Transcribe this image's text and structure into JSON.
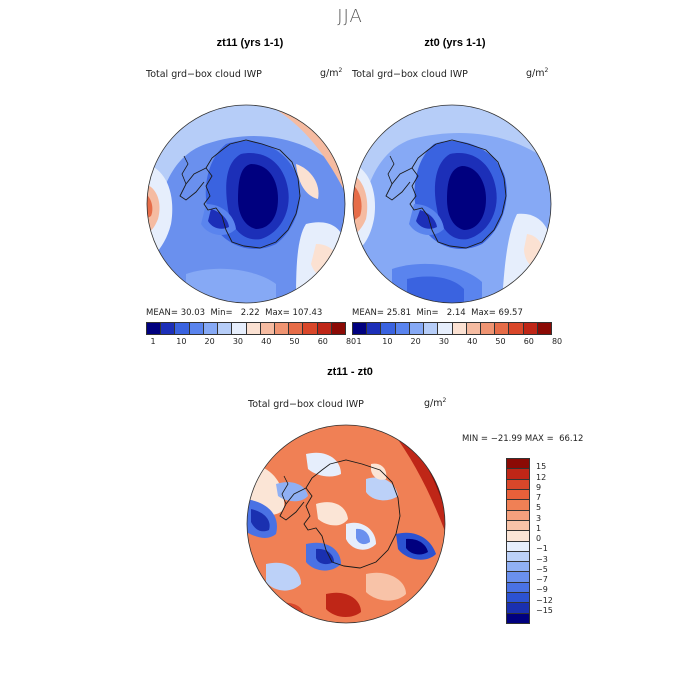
{
  "title": "JJA",
  "panels": [
    {
      "id": "zt11",
      "title": "zt11 (yrs 1-1)",
      "variable": "Total grd−box cloud IWP",
      "units_base": "g/m",
      "units_exp": "2",
      "stats": {
        "mean_label": "MEAN=",
        "mean": "30.03",
        "min_label": "Min=",
        "min": "2.22",
        "max_label": "Max=",
        "max": "107.43"
      }
    },
    {
      "id": "zt0",
      "title": "zt0 (yrs 1-1)",
      "variable": "Total grd−box cloud IWP",
      "units_base": "g/m",
      "units_exp": "2",
      "stats": {
        "mean_label": "MEAN=",
        "mean": "25.81",
        "min_label": "Min=",
        "min": "2.14",
        "max_label": "Max=",
        "max": "69.57"
      }
    }
  ],
  "abs_colorbar": {
    "colors": [
      "#00007f",
      "#1c2fb8",
      "#3a63e0",
      "#5a84ee",
      "#86a9f5",
      "#b6cdf8",
      "#e6eefc",
      "#fbe1d2",
      "#f5bba1",
      "#ef9472",
      "#e66c48",
      "#d9472a",
      "#bf2617",
      "#8b0a05"
    ],
    "labels": [
      "1",
      "10",
      "20",
      "30",
      "40",
      "50",
      "60",
      "80"
    ]
  },
  "diff": {
    "title": "zt11 - zt0",
    "variable": "Total grd−box cloud IWP",
    "units_base": "g/m",
    "units_exp": "2",
    "minmax": {
      "min_label": "MIN =",
      "min": "−21.99",
      "max_label": "MAX =",
      "max": "66.12"
    }
  },
  "diff_colorbar": {
    "colors": [
      "#8b0a05",
      "#bf2617",
      "#d9472a",
      "#e8603a",
      "#f08055",
      "#f5a07d",
      "#f8c3a8",
      "#fbe5d6",
      "#e6eefc",
      "#bcd1f8",
      "#90b0f4",
      "#6a90ee",
      "#4a72e4",
      "#2c52d2",
      "#1a30b0",
      "#00007f"
    ],
    "labels": [
      "15",
      "12",
      "9",
      "7",
      "5",
      "3",
      "1",
      "0",
      "−1",
      "−3",
      "−5",
      "−7",
      "−9",
      "−12",
      "−15"
    ]
  },
  "colors": {
    "coast": "#1a1a1a",
    "frame": "#333333"
  }
}
